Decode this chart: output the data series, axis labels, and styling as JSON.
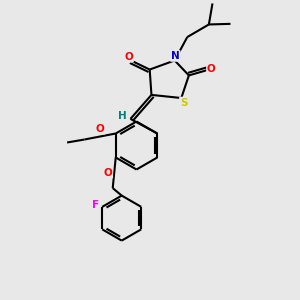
{
  "bg_color": "#e8e8e8",
  "bond_color": "#000000",
  "atom_colors": {
    "O": "#ff0000",
    "N": "#0000cd",
    "S": "#cccc00",
    "F": "#ff00ff",
    "H_label": "#008080",
    "C": "#000000"
  }
}
